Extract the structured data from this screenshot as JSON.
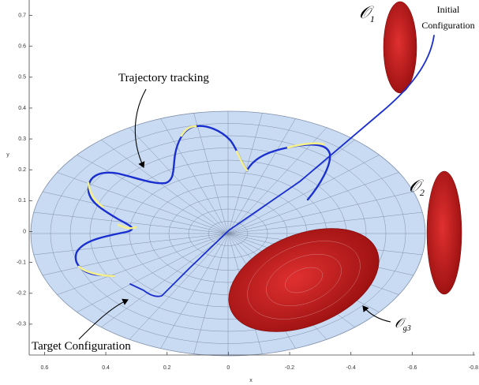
{
  "chart_data": {
    "type": "plot3d",
    "xlabel": "x",
    "ylabel": "y",
    "xlim": [
      0.65,
      -0.8
    ],
    "xticks": [
      0.6,
      0.4,
      0.2,
      0,
      -0.2,
      -0.4,
      -0.6,
      -0.8
    ],
    "ylim": [
      -0.4,
      0.75
    ],
    "yticks": [
      0.7,
      0.6,
      0.5,
      0.4,
      0.3,
      0.2,
      0.1,
      0,
      -0.1,
      -0.2,
      -0.3
    ],
    "annotations": {
      "trajectory": "Trajectory tracking",
      "initial": [
        "Initial",
        "Configuration"
      ],
      "target": "Target Configuration",
      "obstacles": [
        {
          "symbol": "𝒪",
          "index": "1"
        },
        {
          "symbol": "𝒪",
          "index": "2"
        },
        {
          "symbol": "𝒪",
          "index": "g3"
        }
      ]
    }
  }
}
